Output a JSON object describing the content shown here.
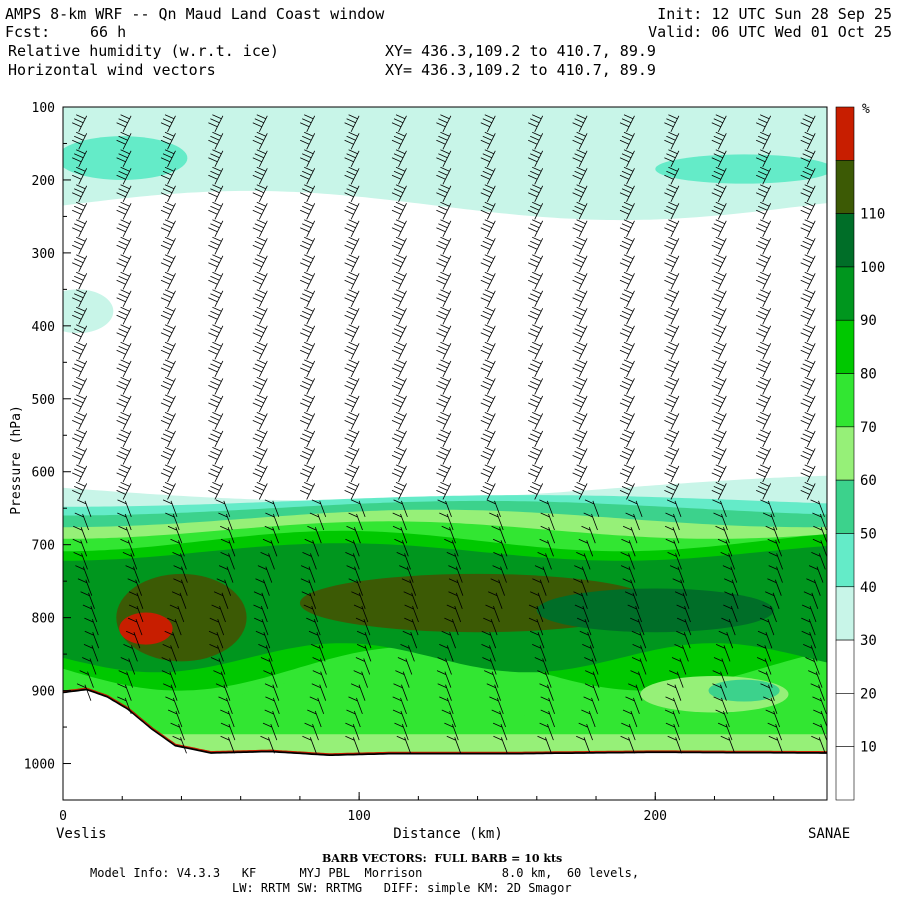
{
  "header": {
    "title": "AMPS 8-km WRF -- Qn Maud Land Coast window",
    "fcst_label": "Fcst:",
    "fcst_value": "66 h",
    "init": "Init: 12 UTC Sun 28 Sep 25",
    "valid": "Valid: 06 UTC Wed 01 Oct 25",
    "field1": "Relative humidity (w.r.t. ice)",
    "field2": "Horizontal wind vectors",
    "xy1": "XY= 436.3,109.2 to 410.7, 89.9",
    "xy2": "XY= 436.3,109.2 to 410.7, 89.9"
  },
  "footer": {
    "barb_note": "BARB VECTORS:  FULL BARB = 10 kts",
    "model_info_line1": "Model Info: V4.3.3   KF      MYJ PBL  Morrison           8.0 km,  60 levels,",
    "model_info_line2": "LW: RRTM SW: RRTMG   DIFF: simple KM: 2D Smagor"
  },
  "chart_data": {
    "type": "heatmap",
    "xlabel": "Distance (km)",
    "ylabel": "Pressure (hPa)",
    "x_start_label": "Veslis",
    "x_end_label": "SANAE",
    "xlim": [
      0,
      258
    ],
    "ylim": [
      1050,
      100
    ],
    "x_ticks": [
      0,
      100,
      200
    ],
    "y_ticks": [
      100,
      200,
      300,
      400,
      500,
      600,
      700,
      800,
      900,
      1000
    ],
    "colorbar": {
      "unit": "%",
      "levels": [
        10,
        20,
        30,
        40,
        50,
        60,
        70,
        80,
        90,
        100,
        110
      ],
      "colors": [
        "#ffffff",
        "#ffffff",
        "#ffffff",
        "#c8f5e8",
        "#64ebc8",
        "#3cd28c",
        "#96f078",
        "#32e632",
        "#00c800",
        "#00961e",
        "#006e28",
        "#3c5a05",
        "#c81e00"
      ]
    },
    "terrain_hpa": [
      [
        0,
        902
      ],
      [
        8,
        898
      ],
      [
        15,
        908
      ],
      [
        22,
        925
      ],
      [
        30,
        952
      ],
      [
        38,
        975
      ],
      [
        50,
        985
      ],
      [
        70,
        983
      ],
      [
        90,
        988
      ],
      [
        110,
        986
      ],
      [
        150,
        986
      ],
      [
        200,
        984
      ],
      [
        258,
        985
      ]
    ],
    "rh_regions": [
      {
        "level": 30,
        "desc": "upper moist layer",
        "p_top": 100,
        "p_bottom": 240
      },
      {
        "level": 60,
        "desc": "low-level moist layer top",
        "p_top": 640,
        "p_bottom": 985
      },
      {
        "level": 100,
        "desc": "saturated core",
        "p_top": 760,
        "p_bottom": 860
      },
      {
        "level": 110,
        "desc": "supersaturated pocket",
        "x": [
          17,
          38
        ],
        "p_top": 795,
        "p_bottom": 855
      }
    ],
    "wind_barb_columns_km": [
      8,
      23,
      38,
      54,
      69,
      85,
      100,
      116,
      131,
      146,
      162,
      177,
      193,
      208,
      224,
      239,
      254
    ],
    "grid": false
  }
}
